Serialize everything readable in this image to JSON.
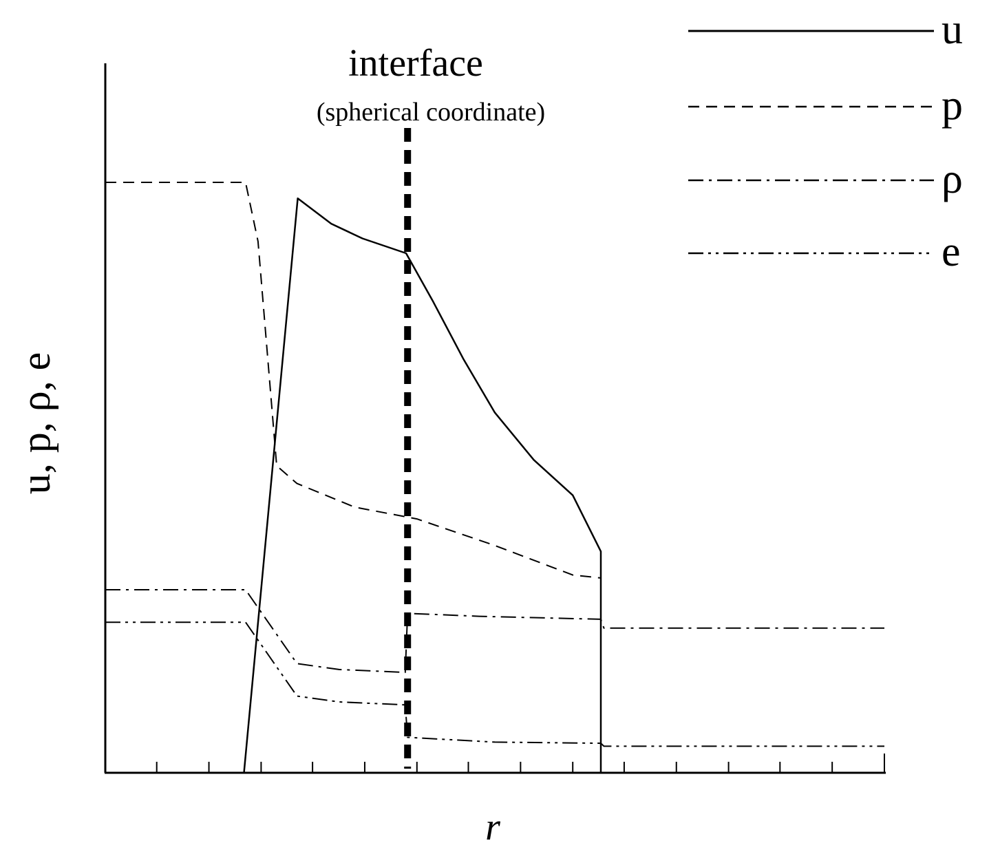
{
  "chart_data": {
    "type": "line",
    "title": "",
    "xlabel": "r",
    "ylabel": "u, p, ρ, e",
    "xlim": [
      0,
      1
    ],
    "ylim": [
      0,
      1
    ],
    "x_ticks": [
      0,
      0.066,
      0.133,
      0.2,
      0.266,
      0.333,
      0.4,
      0.466,
      0.533,
      0.6,
      0.666,
      0.733,
      0.8,
      0.866,
      0.933,
      1
    ],
    "tick_labels": [],
    "grid": false,
    "legend_position": "top-right",
    "annotation": {
      "title": "interface",
      "subtitle": "(spherical coordinate)",
      "x": 0.388
    },
    "series": [
      {
        "name": "u",
        "line_style": "solid",
        "points": [
          [
            0,
            0
          ],
          [
            0.178,
            0
          ],
          [
            0.247,
            0.973
          ],
          [
            0.29,
            0.93
          ],
          [
            0.33,
            0.905
          ],
          [
            0.386,
            0.88
          ],
          [
            0.42,
            0.8
          ],
          [
            0.46,
            0.7
          ],
          [
            0.5,
            0.61
          ],
          [
            0.55,
            0.53
          ],
          [
            0.6,
            0.47
          ],
          [
            0.636,
            0.375
          ],
          [
            0.636,
            0
          ],
          [
            1,
            0
          ]
        ]
      },
      {
        "name": "p",
        "line_style": "dashed",
        "points": [
          [
            0,
            1
          ],
          [
            0.18,
            1
          ],
          [
            0.196,
            0.9
          ],
          [
            0.22,
            0.52
          ],
          [
            0.246,
            0.49
          ],
          [
            0.32,
            0.45
          ],
          [
            0.4,
            0.43
          ],
          [
            0.5,
            0.385
          ],
          [
            0.6,
            0.335
          ],
          [
            0.636,
            0.33
          ],
          [
            0.636,
            0
          ],
          [
            1,
            0
          ]
        ]
      },
      {
        "name": "ρ",
        "line_style": "dash-dot",
        "points": [
          [
            0,
            0.31
          ],
          [
            0.18,
            0.31
          ],
          [
            0.246,
            0.185
          ],
          [
            0.3,
            0.175
          ],
          [
            0.385,
            0.17
          ],
          [
            0.388,
            0.27
          ],
          [
            0.48,
            0.265
          ],
          [
            0.636,
            0.26
          ],
          [
            0.64,
            0.245
          ],
          [
            1,
            0.245
          ]
        ]
      },
      {
        "name": "e",
        "line_style": "dash-dot-dot",
        "points": [
          [
            0,
            0.255
          ],
          [
            0.18,
            0.255
          ],
          [
            0.246,
            0.13
          ],
          [
            0.3,
            0.12
          ],
          [
            0.385,
            0.115
          ],
          [
            0.388,
            0.06
          ],
          [
            0.5,
            0.052
          ],
          [
            0.636,
            0.05
          ],
          [
            0.64,
            0.045
          ],
          [
            1,
            0.045
          ]
        ]
      }
    ]
  }
}
